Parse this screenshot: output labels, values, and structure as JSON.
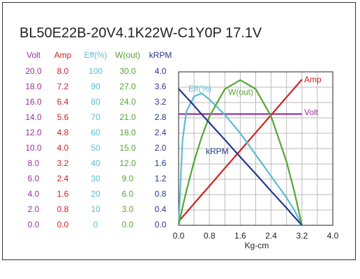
{
  "chart_data": {
    "type": "line",
    "title": "BL50E22B-20V4.1K22W-C1Y0P  17.1V",
    "xlabel": "Kg-cm",
    "x": [
      0,
      0.1,
      0.2,
      0.4,
      0.6,
      0.8,
      1.2,
      1.6,
      2.0,
      2.4,
      2.8,
      3.0,
      3.2
    ],
    "xlim": [
      0,
      4
    ],
    "xticks": [
      {
        "value": 0,
        "label": "0.0"
      },
      {
        "value": 0.8,
        "label": "0.8"
      },
      {
        "value": 1.6,
        "label": "1.6"
      },
      {
        "value": 2.4,
        "label": "2.4"
      },
      {
        "value": 3.2,
        "label": "3.2"
      },
      {
        "value": 4,
        "label": "4.0"
      }
    ],
    "grid": true,
    "series": [
      {
        "name": "Volt",
        "color": "#993399",
        "values": [
          14.5,
          14.5,
          14.5,
          14.5,
          14.5,
          14.5,
          14.5,
          14.5,
          14.5,
          14.5,
          14.5,
          14.5,
          14.5
        ],
        "ylim": [
          0,
          20
        ],
        "yticks": [
          {
            "value": 0,
            "label": "0.0"
          },
          {
            "value": 2,
            "label": "2.0"
          },
          {
            "value": 4,
            "label": "4.0"
          },
          {
            "value": 6,
            "label": "6.0"
          },
          {
            "value": 8,
            "label": "8.0"
          },
          {
            "value": 10,
            "label": "10.0"
          },
          {
            "value": 12,
            "label": "12.0"
          },
          {
            "value": 14,
            "label": "14.0"
          },
          {
            "value": 16,
            "label": "16.0"
          },
          {
            "value": 18,
            "label": "18.0"
          },
          {
            "value": 20,
            "label": "20.0"
          }
        ]
      },
      {
        "name": "Amp",
        "color": "#cc2222",
        "values": [
          0.2,
          0.43,
          0.66,
          1.13,
          1.59,
          2.05,
          2.98,
          3.9,
          4.83,
          5.75,
          6.68,
          7.14,
          7.6
        ],
        "ylim": [
          0,
          8
        ],
        "yticks": [
          {
            "value": 0,
            "label": "0.0"
          },
          {
            "value": 0.8,
            "label": "0.8"
          },
          {
            "value": 1.6,
            "label": "1.6"
          },
          {
            "value": 2.4,
            "label": "2.4"
          },
          {
            "value": 3.2,
            "label": "3.2"
          },
          {
            "value": 4,
            "label": "4.0"
          },
          {
            "value": 4.8,
            "label": "4.8"
          },
          {
            "value": 5.6,
            "label": "5.6"
          },
          {
            "value": 6.4,
            "label": "6.4"
          },
          {
            "value": 7.2,
            "label": "7.2"
          },
          {
            "value": 8,
            "label": "8.0"
          }
        ]
      },
      {
        "name": "Eff(%)",
        "color": "#5bbcd6",
        "values": [
          0,
          55,
          74,
          84,
          86,
          82,
          72,
          60,
          46,
          32,
          18,
          10,
          0
        ],
        "ylim": [
          0,
          100
        ],
        "yticks": [
          0,
          10,
          20,
          30,
          40,
          50,
          60,
          70,
          80,
          90,
          100
        ]
      },
      {
        "name": "W(out)",
        "color": "#55a532",
        "values": [
          0,
          3.44,
          6.66,
          12.43,
          17.31,
          21.3,
          26.63,
          28.4,
          26.63,
          21.3,
          12.43,
          6.66,
          0
        ],
        "ylim": [
          0,
          30
        ],
        "yticks": [
          {
            "value": 0,
            "label": "0.0"
          },
          {
            "value": 3,
            "label": "3.0"
          },
          {
            "value": 6,
            "label": "6.0"
          },
          {
            "value": 9,
            "label": "9.0"
          },
          {
            "value": 12,
            "label": "12.0"
          },
          {
            "value": 15,
            "label": "15.0"
          },
          {
            "value": 18,
            "label": "18.0"
          },
          {
            "value": 21,
            "label": "21.0"
          },
          {
            "value": 24,
            "label": "24.0"
          },
          {
            "value": 27,
            "label": "27.0"
          },
          {
            "value": 30,
            "label": "30.0"
          }
        ]
      },
      {
        "name": "kRPM",
        "color": "#23398a",
        "values": [
          3.56,
          3.45,
          3.34,
          3.12,
          2.89,
          2.67,
          2.23,
          1.78,
          1.34,
          0.89,
          0.45,
          0.22,
          0
        ],
        "ylim": [
          0,
          4
        ],
        "yticks": [
          {
            "value": 0,
            "label": "0.0"
          },
          {
            "value": 0.4,
            "label": "0.4"
          },
          {
            "value": 0.8,
            "label": "0.8"
          },
          {
            "value": 1.2,
            "label": "1.2"
          },
          {
            "value": 1.6,
            "label": "1.6"
          },
          {
            "value": 2,
            "label": "2.0"
          },
          {
            "value": 2.4,
            "label": "2.4"
          },
          {
            "value": 2.8,
            "label": "2.8"
          },
          {
            "value": 3.2,
            "label": "3.2"
          },
          {
            "value": 3.6,
            "label": "3.6"
          },
          {
            "value": 4,
            "label": "4.0"
          }
        ]
      }
    ]
  }
}
